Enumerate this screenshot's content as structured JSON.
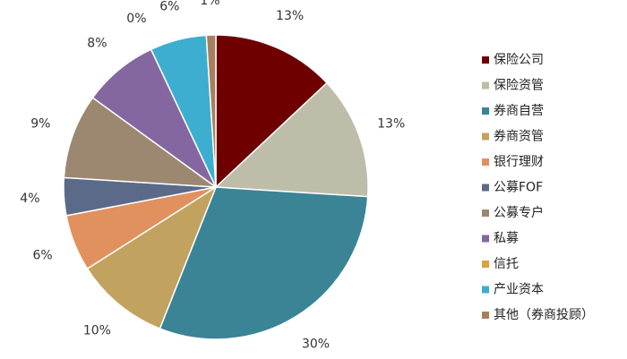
{
  "chart_data": {
    "type": "pie",
    "title": "",
    "legend_position": "right",
    "categories": [
      "保险公司",
      "保险资管",
      "券商自营",
      "券商资管",
      "银行理财",
      "公募FOF",
      "公募专户",
      "私募",
      "信托",
      "产业资本",
      "其他（券商投顾）"
    ],
    "values": [
      13,
      13,
      30,
      10,
      6,
      4,
      9,
      8,
      0,
      6,
      1
    ],
    "labels": [
      "13%",
      "13%",
      "30%",
      "10%",
      "6%",
      "4%",
      "9%",
      "8%",
      "0%",
      "6%",
      "1%"
    ],
    "colors": [
      "#6E0000",
      "#BDBDAA",
      "#3A8496",
      "#C2A25F",
      "#E0915E",
      "#5B6A88",
      "#9C8770",
      "#8467A0",
      "#D9A23F",
      "#3DAECF",
      "#A87F5E"
    ]
  }
}
